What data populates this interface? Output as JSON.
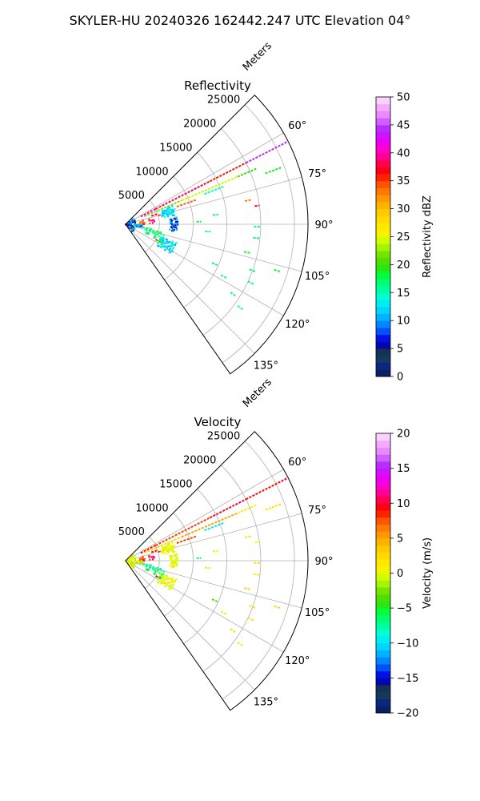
{
  "figure": {
    "suptitle": "SKYLER-HU  20240326  162442.247 UTC Elevation 04°"
  },
  "chart_data": [
    {
      "type": "polar-sector",
      "title": "Reflectivity",
      "radial_label": "Meters",
      "radial_ticks": [
        5000,
        10000,
        15000,
        20000,
        25000
      ],
      "radial_tick_labels": [
        "5000",
        "10000",
        "15000",
        "20000",
        "25000"
      ],
      "rlim": [
        0,
        27000
      ],
      "angle_ticks_deg": [
        60,
        75,
        90,
        105,
        120,
        135
      ],
      "angle_tick_labels": [
        "60°",
        "75°",
        "90°",
        "105°",
        "120°",
        "135°"
      ],
      "theta_range_deg": [
        45,
        145
      ],
      "grid": true,
      "field_key": "reflectivity",
      "colorbar": {
        "label": "Reflectivity dBZ",
        "vmin": 0,
        "vmax": 50,
        "ticks": [
          0,
          5,
          10,
          15,
          20,
          25,
          30,
          35,
          40,
          45,
          50
        ],
        "tick_labels": [
          "0",
          "5",
          "10",
          "15",
          "20",
          "25",
          "30",
          "35",
          "40",
          "45",
          "50"
        ]
      }
    },
    {
      "type": "polar-sector",
      "title": "Velocity",
      "radial_label": "Meters",
      "radial_ticks": [
        5000,
        10000,
        15000,
        20000,
        25000
      ],
      "radial_tick_labels": [
        "5000",
        "10000",
        "15000",
        "20000",
        "25000"
      ],
      "rlim": [
        0,
        27000
      ],
      "angle_ticks_deg": [
        60,
        75,
        90,
        105,
        120,
        135
      ],
      "angle_tick_labels": [
        "60°",
        "75°",
        "90°",
        "105°",
        "120°",
        "135°"
      ],
      "theta_range_deg": [
        45,
        145
      ],
      "grid": true,
      "field_key": "velocity",
      "colorbar": {
        "label": "Velocity (m/s)",
        "vmin": -20,
        "vmax": 20,
        "ticks": [
          -20,
          -15,
          -10,
          -5,
          0,
          5,
          10,
          15,
          20
        ],
        "tick_labels": [
          "−20",
          "−15",
          "−10",
          "−5",
          "0",
          "5",
          "10",
          "15",
          "20"
        ]
      }
    }
  ],
  "echo_returns": [
    {
      "az": 63,
      "r0": 2500,
      "r1": 5000,
      "reflectivity": 40,
      "velocity": 9
    },
    {
      "az": 63,
      "r0": 5000,
      "r1": 14000,
      "reflectivity": 38,
      "velocity": 8
    },
    {
      "az": 63,
      "r0": 14000,
      "r1": 20000,
      "reflectivity": 36,
      "velocity": 10
    },
    {
      "az": 63,
      "r0": 20000,
      "r1": 26800,
      "reflectivity": 44,
      "velocity": 9
    },
    {
      "az": 67,
      "r0": 3000,
      "r1": 9000,
      "reflectivity": 22,
      "velocity": 3
    },
    {
      "az": 67,
      "r0": 9000,
      "r1": 18000,
      "reflectivity": 24,
      "velocity": 5
    },
    {
      "az": 67,
      "r0": 18000,
      "r1": 21000,
      "reflectivity": 20,
      "velocity": 0
    },
    {
      "az": 69,
      "r0": 12500,
      "r1": 15500,
      "reflectivity": 15,
      "velocity": -10
    },
    {
      "az": 70,
      "r0": 22000,
      "r1": 24500,
      "reflectivity": 19,
      "velocity": 2
    },
    {
      "az": 71,
      "r0": 8000,
      "r1": 11000,
      "reflectivity": 34,
      "velocity": 8
    },
    {
      "az": 79,
      "r0": 18000,
      "r1": 19000,
      "reflectivity": 33,
      "velocity": 2
    },
    {
      "az": 82,
      "r0": 19300,
      "r1": 20000,
      "reflectivity": 37,
      "velocity": 1
    },
    {
      "az": 91,
      "r0": 19000,
      "r1": 20000,
      "reflectivity": 17,
      "velocity": 2
    },
    {
      "az": 96,
      "r0": 19000,
      "r1": 20000,
      "reflectivity": 17,
      "velocity": 1
    },
    {
      "az": 103,
      "r0": 18000,
      "r1": 19000,
      "reflectivity": 18,
      "velocity": 3
    },
    {
      "az": 107,
      "r0": 23000,
      "r1": 24000,
      "reflectivity": 18,
      "velocity": 3
    },
    {
      "az": 110,
      "r0": 19500,
      "r1": 20500,
      "reflectivity": 17,
      "velocity": 2
    },
    {
      "az": 114,
      "r0": 14000,
      "r1": 15000,
      "reflectivity": 16,
      "velocity": -3
    },
    {
      "az": 115,
      "r0": 20000,
      "r1": 21000,
      "reflectivity": 16,
      "velocity": 2
    },
    {
      "az": 118,
      "r0": 16000,
      "r1": 17000,
      "reflectivity": 15,
      "velocity": 1
    },
    {
      "az": 123,
      "r0": 18500,
      "r1": 19500,
      "reflectivity": 16,
      "velocity": 2
    },
    {
      "az": 126,
      "r0": 20500,
      "r1": 21500,
      "reflectivity": 15,
      "velocity": 1
    },
    {
      "az": 88,
      "r0": 10500,
      "r1": 11200,
      "reflectivity": 18,
      "velocity": -6
    },
    {
      "az": 84,
      "r0": 13000,
      "r1": 13800,
      "reflectivity": 17,
      "velocity": 1
    },
    {
      "az": 95,
      "r0": 11800,
      "r1": 12600,
      "reflectivity": 16,
      "velocity": 2
    },
    {
      "az": 75,
      "r0": 5000,
      "r1": 6000,
      "reflectivity": 35,
      "velocity": 8
    },
    {
      "az": 72,
      "r0": 4000,
      "r1": 5000,
      "reflectivity": 38,
      "velocity": 9
    },
    {
      "az": 100,
      "r0": 2000,
      "r1": 4000,
      "reflectivity": 16,
      "velocity": -7
    },
    {
      "az": 103,
      "r0": 3000,
      "r1": 5500,
      "reflectivity": 18,
      "velocity": -8
    },
    {
      "az": 117,
      "r0": 5000,
      "r1": 6000,
      "reflectivity": 35,
      "velocity": 9
    }
  ],
  "clutter_patches": [
    {
      "az0": 68,
      "az1": 80,
      "r0": 5500,
      "r1": 7600,
      "n": 55,
      "z": [
        10,
        14
      ],
      "v": [
        -1,
        1
      ]
    },
    {
      "az0": 82,
      "az1": 98,
      "r0": 6500,
      "r1": 7700,
      "n": 40,
      "z": [
        4,
        12
      ],
      "v": [
        -1,
        1
      ]
    },
    {
      "az0": 110,
      "az1": 124,
      "r0": 5500,
      "r1": 8000,
      "n": 70,
      "z": [
        10,
        16
      ],
      "v": [
        -1,
        2
      ]
    },
    {
      "az0": 90,
      "az1": 100,
      "r0": 1500,
      "r1": 2500,
      "n": 30,
      "z": [
        8,
        14
      ],
      "v": [
        -2,
        2
      ]
    },
    {
      "az0": 50,
      "az1": 140,
      "r0": 0,
      "r1": 1500,
      "n": 60,
      "z": [
        3,
        12
      ],
      "v": [
        -2,
        2
      ]
    },
    {
      "az0": 104,
      "az1": 118,
      "r0": 3000,
      "r1": 6000,
      "n": 25,
      "z": [
        14,
        20
      ],
      "v": [
        -8,
        -4
      ]
    },
    {
      "az0": 78,
      "az1": 90,
      "r0": 2000,
      "r1": 4500,
      "n": 18,
      "z": [
        30,
        42
      ],
      "v": [
        6,
        12
      ]
    }
  ],
  "colormap_stops": [
    {
      "t": 0.0,
      "color": "#0b1a5a"
    },
    {
      "t": 0.05,
      "color": "#0c2d8a"
    },
    {
      "t": 0.08,
      "color": "#1e4a2c"
    },
    {
      "t": 0.1,
      "color": "#0a0a8c"
    },
    {
      "t": 0.13,
      "color": "#0000e0"
    },
    {
      "t": 0.17,
      "color": "#0064ff"
    },
    {
      "t": 0.2,
      "color": "#00a0ff"
    },
    {
      "t": 0.24,
      "color": "#00d8ff"
    },
    {
      "t": 0.28,
      "color": "#00ffe0"
    },
    {
      "t": 0.32,
      "color": "#00ff90"
    },
    {
      "t": 0.36,
      "color": "#00ff40"
    },
    {
      "t": 0.4,
      "color": "#3cdc00"
    },
    {
      "t": 0.44,
      "color": "#78e600"
    },
    {
      "t": 0.48,
      "color": "#c8ff00"
    },
    {
      "t": 0.52,
      "color": "#fff000"
    },
    {
      "t": 0.58,
      "color": "#ffd200"
    },
    {
      "t": 0.63,
      "color": "#ffa000"
    },
    {
      "t": 0.68,
      "color": "#ff6400"
    },
    {
      "t": 0.73,
      "color": "#ff0000"
    },
    {
      "t": 0.77,
      "color": "#ff0064"
    },
    {
      "t": 0.81,
      "color": "#ff00c8"
    },
    {
      "t": 0.85,
      "color": "#e100ff"
    },
    {
      "t": 0.89,
      "color": "#b432ff"
    },
    {
      "t": 0.93,
      "color": "#e682ff"
    },
    {
      "t": 0.97,
      "color": "#f5b4ff"
    },
    {
      "t": 1.0,
      "color": "#fde6ff"
    }
  ],
  "styles": {
    "grid_color": "#b0b0b0",
    "frame_color": "#000000"
  }
}
